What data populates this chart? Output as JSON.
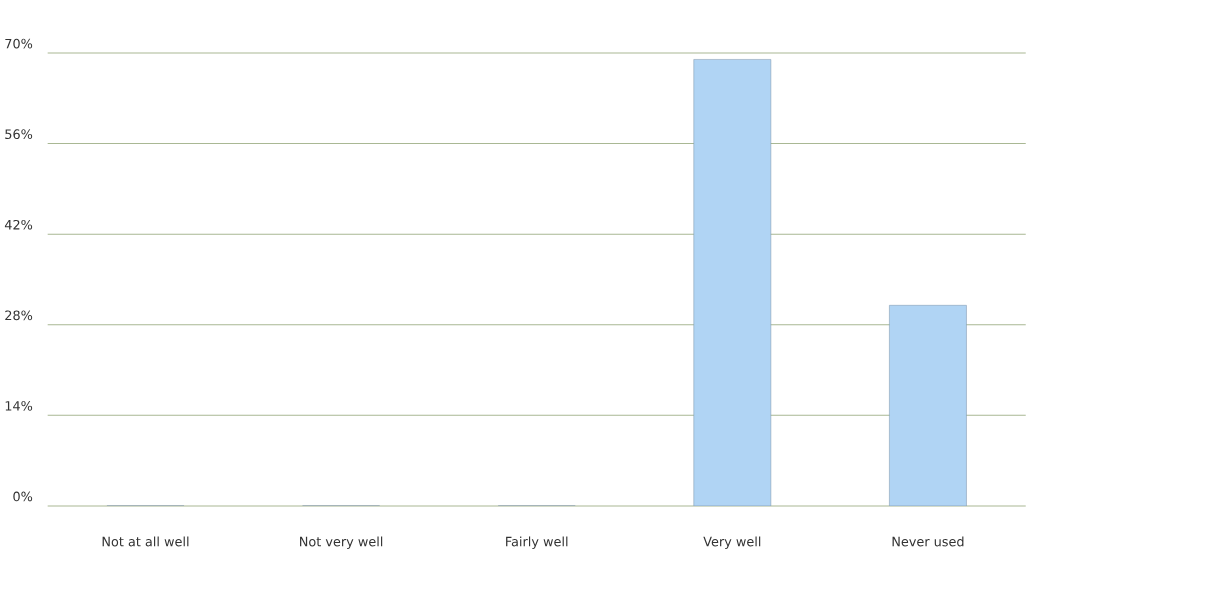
{
  "chart_data": {
    "type": "bar",
    "categories": [
      "Not at all well",
      "Not very well",
      "Fairly well",
      "Very well",
      "Never used"
    ],
    "values": [
      0,
      0,
      0,
      69,
      31
    ],
    "color": "#b0d4f4",
    "ylim": [
      0,
      70
    ],
    "yticks": [
      {
        "value": 0,
        "label": "0%"
      },
      {
        "value": 14,
        "label": "14%"
      },
      {
        "value": 28,
        "label": "28%"
      },
      {
        "value": 42,
        "label": "42%"
      },
      {
        "value": 56,
        "label": "56%"
      },
      {
        "value": 70,
        "label": "70%"
      }
    ],
    "grid": "y"
  }
}
